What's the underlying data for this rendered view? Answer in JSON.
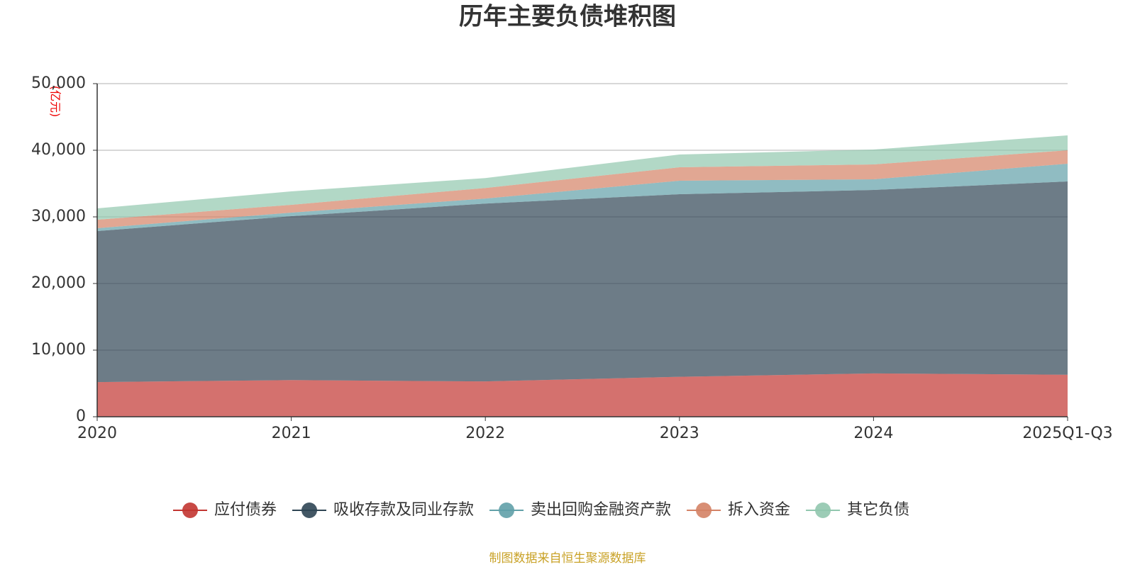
{
  "chart_data": {
    "type": "stacked_area",
    "title": "历年主要负债堆积图",
    "y_label": "(亿元)",
    "categories": [
      "2020",
      "2021",
      "2022",
      "2023",
      "2024",
      "2025Q1-Q3"
    ],
    "series": [
      {
        "name": "应付债券",
        "color": "#c23531",
        "values": [
          5200,
          5500,
          5300,
          6000,
          6500,
          6300
        ]
      },
      {
        "name": "吸收存款及同业存款",
        "color": "#2f4554",
        "values": [
          22670,
          24600,
          26700,
          27400,
          27540,
          29020
        ]
      },
      {
        "name": "卖出回购金融资产款",
        "color": "#61a0a8",
        "values": [
          430,
          540,
          750,
          2030,
          1600,
          2660
        ]
      },
      {
        "name": "拆入资金",
        "color": "#d48265",
        "values": [
          1270,
          1170,
          1590,
          2020,
          2230,
          2020
        ]
      },
      {
        "name": "其它负债",
        "color": "#91c7ae",
        "values": [
          1710,
          2020,
          1490,
          1910,
          2240,
          2230
        ]
      }
    ],
    "ylim": [
      0,
      50000
    ],
    "yticks": [
      0,
      {
        "value": 10000,
        "label": "10,000"
      },
      {
        "value": 20000,
        "label": "20,000"
      },
      {
        "value": 30000,
        "label": "30,000"
      },
      {
        "value": 40000,
        "label": "40,000"
      },
      {
        "value": 50000,
        "label": "50,000"
      }
    ],
    "grid": true,
    "source": "制图数据来自恒生聚源数据库"
  }
}
